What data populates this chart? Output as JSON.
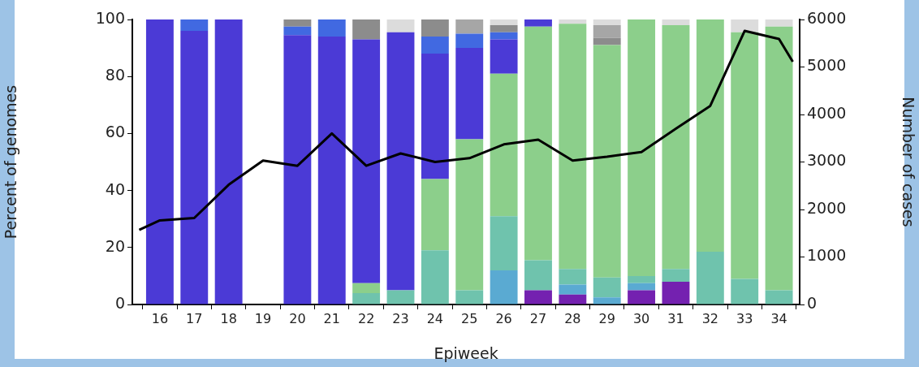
{
  "chart_data": {
    "type": "bar",
    "stacked": true,
    "xlabel": "Epiweek",
    "ylabel": "Percent of genomes",
    "y2label": "Number of cases",
    "x": [
      16,
      17,
      18,
      19,
      20,
      21,
      22,
      23,
      24,
      25,
      26,
      27,
      28,
      29,
      30,
      31,
      32,
      33,
      34
    ],
    "xlim": [
      15.2,
      34.6
    ],
    "xticks": [
      16,
      17,
      18,
      19,
      20,
      21,
      22,
      23,
      24,
      25,
      26,
      27,
      28,
      29,
      30,
      31,
      32,
      33,
      34
    ],
    "ylim": [
      0,
      100
    ],
    "yticks": [
      0,
      20,
      40,
      60,
      80,
      100
    ],
    "y2lim": [
      0,
      6000
    ],
    "y2ticks": [
      0,
      1000,
      2000,
      3000,
      4000,
      5000,
      6000
    ],
    "marker": "none",
    "line_style": "solid",
    "series": [
      {
        "color": "#7421b0",
        "values": [
          0,
          0,
          0,
          0,
          0,
          0,
          0,
          0,
          0,
          0,
          0,
          5,
          3.5,
          0,
          5,
          8,
          0,
          0,
          0
        ]
      },
      {
        "color": "#5aaad2",
        "values": [
          0,
          0,
          0,
          0,
          0,
          0,
          0,
          0,
          0,
          0,
          12,
          0,
          3.5,
          2.5,
          2.5,
          0,
          0,
          0,
          0
        ]
      },
      {
        "color": "#6fc3ad",
        "values": [
          0,
          0,
          0,
          0,
          0,
          0,
          4,
          5,
          19,
          5,
          19,
          10.5,
          5.5,
          7,
          2.5,
          4.5,
          18.5,
          9,
          5
        ]
      },
      {
        "color": "#8ccf8b",
        "values": [
          0,
          0,
          0,
          0,
          0,
          0,
          3.5,
          0,
          25,
          53,
          50,
          82,
          86,
          81.5,
          90,
          85.5,
          81.5,
          86.5,
          92.5
        ]
      },
      {
        "color": "#4b3ad6",
        "values": [
          100,
          96,
          100,
          0,
          94.5,
          94,
          85.5,
          90.5,
          44,
          32,
          12,
          2.5,
          0,
          0,
          0,
          0,
          0,
          0,
          0
        ]
      },
      {
        "color": "#4169e1",
        "values": [
          0,
          4,
          0,
          0,
          3,
          6,
          0,
          0,
          6,
          5,
          2.5,
          0,
          0,
          0,
          0,
          0,
          0,
          0,
          0
        ]
      },
      {
        "color": "#8c8c8c",
        "values": [
          0,
          0,
          0,
          0,
          2.5,
          0,
          7,
          0,
          6,
          0,
          2.5,
          0,
          0,
          2.5,
          0,
          0,
          0,
          0,
          0
        ]
      },
      {
        "color": "#a6a6a6",
        "values": [
          0,
          0,
          0,
          0,
          0,
          0,
          0,
          0,
          0,
          5,
          0,
          0,
          0,
          4.5,
          0,
          0,
          0,
          0,
          0
        ]
      },
      {
        "color": "#dcdcdc",
        "values": [
          0,
          0,
          0,
          0,
          0,
          0,
          0,
          4.5,
          0,
          0,
          2,
          0,
          1.5,
          2,
          0,
          2,
          0,
          4.5,
          2.5
        ]
      },
      {
        "type": "line",
        "axis": "y2",
        "color": "#000000",
        "x": [
          15.4,
          16,
          17,
          18,
          19,
          20,
          21,
          22,
          23,
          24,
          25,
          26,
          27,
          28,
          29,
          30,
          31,
          32,
          33,
          34,
          34.4
        ],
        "values": [
          1570,
          1770,
          1820,
          2520,
          3030,
          2920,
          3600,
          2920,
          3180,
          3000,
          3080,
          3370,
          3470,
          3030,
          3110,
          3210,
          3700,
          4180,
          5760,
          5590,
          5110
        ]
      }
    ]
  }
}
